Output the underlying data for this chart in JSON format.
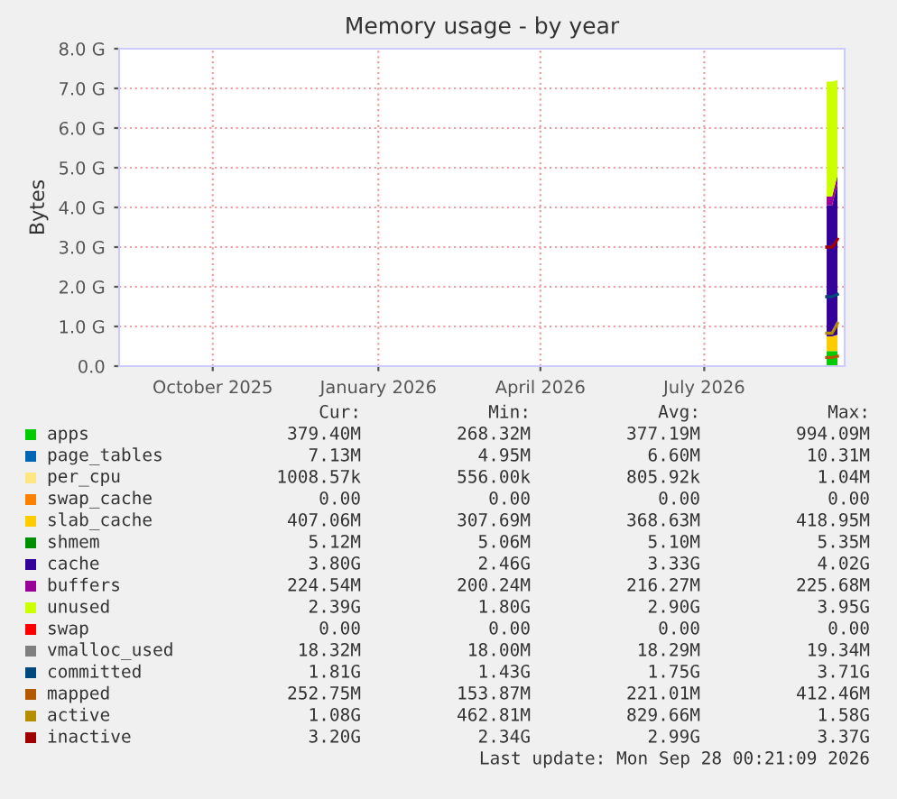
{
  "chart_data": {
    "type": "area",
    "title": "Memory usage - by year",
    "ylabel": "Bytes",
    "stacked": true,
    "x": [
      "2026-09-22",
      "2026-09-25",
      "2026-09-28"
    ],
    "legend": "bottom",
    "xlim": [
      "2025-08-25",
      "2026-10-02"
    ],
    "xticks": [
      {
        "value": "2025-10-16",
        "label": "October 2025"
      },
      {
        "value": "2026-01-16",
        "label": "January 2026"
      },
      {
        "value": "2026-04-16",
        "label": "April 2026"
      },
      {
        "value": "2026-07-16",
        "label": "July 2026"
      }
    ],
    "ylim": [
      0,
      8
    ],
    "yticks": [
      {
        "value": 0,
        "label": "0.0"
      },
      {
        "value": 1,
        "label": "1.0 G"
      },
      {
        "value": 2,
        "label": "2.0 G"
      },
      {
        "value": 3,
        "label": "3.0 G"
      },
      {
        "value": 4,
        "label": "4.0 G"
      },
      {
        "value": 5,
        "label": "5.0 G"
      },
      {
        "value": 6,
        "label": "6.0 G"
      },
      {
        "value": 7,
        "label": "7.0 G"
      },
      {
        "value": 8,
        "label": "8.0 G"
      }
    ],
    "grid": true,
    "series": [
      {
        "name": "apps",
        "color": "#00cc00",
        "values": [
          0.38,
          0.38,
          0.38
        ]
      },
      {
        "name": "page_tables",
        "color": "#0066b3",
        "values": [
          null,
          null,
          null
        ]
      },
      {
        "name": "per_cpu",
        "color": "#ffe680",
        "values": [
          null,
          null,
          null
        ]
      },
      {
        "name": "swap_cache",
        "color": "#ff8000",
        "values": [
          null,
          null,
          null
        ]
      },
      {
        "name": "slab_cache",
        "color": "#ffcc00",
        "values": [
          0.37,
          0.37,
          0.41
        ]
      },
      {
        "name": "shmem",
        "color": "#008f00",
        "values": [
          null,
          null,
          null
        ]
      },
      {
        "name": "cache",
        "color": "#330099",
        "values": [
          3.3,
          3.3,
          3.8
        ]
      },
      {
        "name": "buffers",
        "color": "#990099",
        "values": [
          0.22,
          0.22,
          0.22
        ]
      },
      {
        "name": "unused",
        "color": "#ccff00",
        "values": [
          2.9,
          2.9,
          2.4
        ]
      },
      {
        "name": "swap",
        "color": "#ff0000",
        "values": [
          null,
          null,
          null
        ]
      },
      {
        "name": "vmalloc_used",
        "color": "#808080",
        "type": "line",
        "values": [
          null,
          null,
          null
        ]
      },
      {
        "name": "committed",
        "color": "#00487d",
        "type": "line",
        "values": [
          1.75,
          1.75,
          1.81
        ]
      },
      {
        "name": "mapped",
        "color": "#b35a00",
        "type": "line",
        "values": [
          0.22,
          0.22,
          0.25
        ]
      },
      {
        "name": "active",
        "color": "#b38f00",
        "type": "line",
        "values": [
          0.83,
          0.83,
          1.08
        ]
      },
      {
        "name": "inactive",
        "color": "#a00000",
        "type": "line",
        "values": [
          3.0,
          3.0,
          3.2
        ]
      }
    ],
    "annotations": [
      "Cur:",
      "Min:",
      "Avg:",
      "Max:",
      "379.40M",
      "268.32M",
      "377.19M",
      "994.09M",
      "7.13M",
      "4.95M",
      "6.60M",
      "10.31M",
      "1008.57k",
      "556.00k",
      "805.92k",
      "1.04M",
      "0.00",
      "0.00",
      "0.00",
      "0.00",
      "407.06M",
      "307.69M",
      "368.63M",
      "418.95M",
      "5.12M",
      "5.06M",
      "5.10M",
      "5.35M",
      "3.80G",
      "2.46G",
      "3.33G",
      "4.02G",
      "224.54M",
      "200.24M",
      "216.27M",
      "225.68M",
      "2.39G",
      "1.80G",
      "2.90G",
      "3.95G",
      "0.00",
      "0.00",
      "0.00",
      "0.00",
      "18.32M",
      "18.00M",
      "18.29M",
      "19.34M",
      "1.81G",
      "1.43G",
      "1.75G",
      "3.71G",
      "252.75M",
      "153.87M",
      "221.01M",
      "412.46M",
      "1.08G",
      "462.81M",
      "829.66M",
      "1.58G",
      "3.20G",
      "2.34G",
      "2.99G",
      "3.37G",
      "Last update: Mon Sep 28 00:21:09 2026"
    ]
  }
}
